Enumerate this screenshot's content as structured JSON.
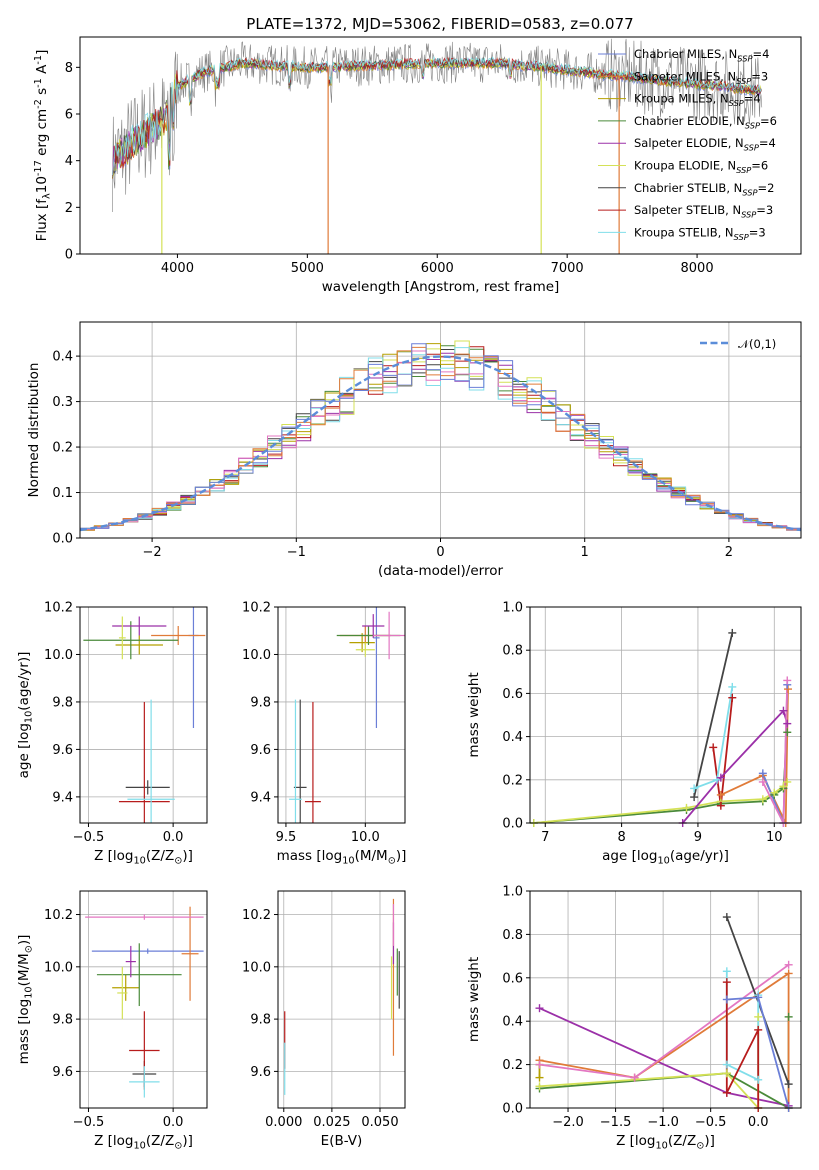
{
  "figure": {
    "title": "PLATE=1372, MJD=53062, FIBERID=0583, z=0.077"
  },
  "models": [
    {
      "name": "Chabrier MILES",
      "n_ssp": 4,
      "color": "#6b7fd7"
    },
    {
      "name": "Salpeter MILES",
      "n_ssp": 3,
      "color": "#e07b39"
    },
    {
      "name": "Kroupa MILES",
      "n_ssp": 4,
      "color": "#b5a000"
    },
    {
      "name": "Chabrier ELODIE",
      "n_ssp": 6,
      "color": "#4a8a3a"
    },
    {
      "name": "Salpeter ELODIE",
      "n_ssp": 4,
      "color": "#9b30a8"
    },
    {
      "name": "Kroupa ELODIE",
      "n_ssp": 6,
      "color": "#d4e157"
    },
    {
      "name": "Chabrier STELIB",
      "n_ssp": 2,
      "color": "#444444"
    },
    {
      "name": "Salpeter STELIB",
      "n_ssp": 3,
      "color": "#b71c1c"
    },
    {
      "name": "Kroupa STELIB",
      "n_ssp": 3,
      "color": "#80deea"
    }
  ],
  "chart_data": [
    {
      "id": "spectrum",
      "type": "line",
      "title": "PLATE=1372, MJD=53062, FIBERID=0583, z=0.077",
      "xlabel": "wavelength [Angstrom, rest frame]",
      "ylabel": "Flux [f$_\\lambda$10$^{-17}$ erg cm$^{-2}$ s$^{-1}$ A$^{-1}$]",
      "xlim": [
        3250,
        8800
      ],
      "ylim": [
        0,
        9.3
      ],
      "xticks": [
        4000,
        5000,
        6000,
        7000,
        8000
      ],
      "yticks": [
        0,
        2,
        4,
        6,
        8
      ],
      "grid": false,
      "legend_loc": "upper right",
      "legend": [
        "Chabrier MILES, N$_{SSP}$=4",
        "Salpeter MILES, N$_{SSP}$=3",
        "Kroupa MILES, N$_{SSP}$=4",
        "Chabrier ELODIE, N$_{SSP}$=6",
        "Salpeter ELODIE, N$_{SSP}$=4",
        "Kroupa ELODIE, N$_{SSP}$=6",
        "Chabrier STELIB, N$_{SSP}$=2",
        "Salpeter STELIB, N$_{SSP}$=3",
        "Kroupa STELIB, N$_{SSP}$=3"
      ],
      "continuum_x": [
        3500,
        3700,
        3900,
        4000,
        4200,
        4500,
        5000,
        5500,
        6000,
        6500,
        7000,
        7300,
        7500,
        7800,
        8200,
        8500
      ],
      "continuum_y": [
        4.0,
        5.0,
        5.8,
        7.2,
        7.8,
        8.2,
        8.0,
        8.1,
        8.2,
        8.2,
        7.9,
        7.7,
        7.6,
        7.4,
        7.2,
        7.0
      ]
    },
    {
      "id": "residuals",
      "type": "histogram",
      "xlabel": "(data-model)/error",
      "ylabel": "Normed distribution",
      "xlim": [
        -2.5,
        2.5
      ],
      "ylim": [
        0,
        0.475
      ],
      "xticks": [
        -2,
        -1,
        0,
        1,
        2
      ],
      "xticklabels": [
        "−2",
        "−1",
        "0",
        "1",
        "2"
      ],
      "yticks": [
        0.0,
        0.1,
        0.2,
        0.3,
        0.4
      ],
      "yticklabels": [
        "0.0",
        "0.1",
        "0.2",
        "0.3",
        "0.4"
      ],
      "grid": true,
      "legend_loc": "upper right",
      "legend": [
        "$\\mathcal{N}(0,1)$"
      ],
      "reference": "gaussian N(0,1)",
      "bin_width": 0.1
    },
    {
      "id": "age_vs_Z",
      "type": "errorbar",
      "xlabel": "Z [log$_{10}$(Z/Z$_\\odot$)]",
      "ylabel": "age  [log$_{10}$(age/yr)]",
      "xlim": [
        -0.55,
        0.2
      ],
      "ylim": [
        9.29,
        10.2
      ],
      "xticks": [
        -0.5,
        0.0
      ],
      "xticklabels": [
        "−0.5",
        "0.0"
      ],
      "yticks": [
        9.4,
        9.6,
        9.8,
        10.0,
        10.2
      ],
      "yticklabels": [
        "9.4",
        "9.6",
        "9.8",
        "10.0",
        "10.2"
      ],
      "grid": true,
      "points": [
        {
          "m": 0,
          "x": 0.12,
          "y": 10.08,
          "xe": 0.03,
          "ye": 0.39
        },
        {
          "m": 1,
          "x": 0.03,
          "y": 10.08,
          "xe": 0.16,
          "ye": 0.04
        },
        {
          "m": 2,
          "x": -0.2,
          "y": 10.04,
          "xe": 0.14,
          "ye": 0.04
        },
        {
          "m": 3,
          "x": -0.25,
          "y": 10.06,
          "xe": 0.28,
          "ye": 0.08
        },
        {
          "m": 4,
          "x": -0.2,
          "y": 10.12,
          "xe": 0.16,
          "ye": 0.04
        },
        {
          "m": 5,
          "x": -0.3,
          "y": 10.07,
          "xe": 0.02,
          "ye": 0.09
        },
        {
          "m": 6,
          "x": -0.15,
          "y": 9.44,
          "xe": 0.13,
          "ye": 0.03
        },
        {
          "m": 7,
          "x": -0.17,
          "y": 9.38,
          "xe": 0.15,
          "ye": 0.42
        },
        {
          "m": 8,
          "x": -0.13,
          "y": 9.39,
          "xe": 0.14,
          "ye": 0.42
        }
      ]
    },
    {
      "id": "age_vs_mass",
      "type": "errorbar",
      "xlabel": "mass [log$_{10}$(M/M$_\\odot$)]",
      "xlim": [
        9.45,
        10.25
      ],
      "ylim": [
        9.29,
        10.2
      ],
      "xticks": [
        9.5,
        10.0
      ],
      "xticklabels": [
        "9.5",
        "10.0"
      ],
      "yticks": [
        9.4,
        9.6,
        9.8,
        10.0,
        10.2
      ],
      "yticklabels": [
        "9.4",
        "9.6",
        "9.8",
        "10.0",
        "10.2"
      ],
      "grid": true,
      "points": [
        {
          "m": 0,
          "x": 10.07,
          "y": 10.07,
          "xe": 0.02,
          "ye": 0.38
        },
        {
          "m": 1,
          "x": 10.0,
          "y": 10.08,
          "xe": 0.16,
          "ye": 0.04
        },
        {
          "m": 2,
          "x": 9.98,
          "y": 10.05,
          "xe": 0.08,
          "ye": 0.04
        },
        {
          "m": 3,
          "x": 10.02,
          "y": 10.08,
          "xe": 0.2,
          "ye": 0.04
        },
        {
          "m": 4,
          "x": 10.05,
          "y": 10.12,
          "xe": 0.07,
          "ye": 0.05
        },
        {
          "m": 5,
          "x": 10.0,
          "y": 10.02,
          "xe": 0.06,
          "ye": 0.03
        },
        {
          "m": 6,
          "x": 9.59,
          "y": 9.44,
          "xe": 0.04,
          "ye": 0.37
        },
        {
          "m": 7,
          "x": 9.67,
          "y": 9.38,
          "xe": 0.05,
          "ye": 0.42
        },
        {
          "m": 8,
          "x": 9.56,
          "y": 9.39,
          "xe": 0.04,
          "ye": 0.42
        },
        {
          "m": "pink",
          "x": 10.15,
          "y": 10.08,
          "xe": 0.1,
          "ye": 0.1
        }
      ]
    },
    {
      "id": "massweight_vs_age",
      "type": "line",
      "xlabel": "age  [log$_{10}$(age/yr)]",
      "ylabel": "mass weight",
      "xlim": [
        6.8,
        10.35
      ],
      "ylim": [
        0,
        1.0
      ],
      "xticks": [
        7,
        8,
        9,
        10
      ],
      "xticklabels": [
        "7",
        "8",
        "9",
        "10"
      ],
      "yticks": [
        0.0,
        0.2,
        0.4,
        0.6,
        0.8,
        1.0
      ],
      "yticklabels": [
        "0.0",
        "0.2",
        "0.4",
        "0.6",
        "0.8",
        "1.0"
      ],
      "grid": true,
      "series": [
        {
          "m": 3,
          "x": [
            6.85,
            8.85,
            9.3,
            9.85,
            10.0,
            10.12,
            10.17
          ],
          "y": [
            0.0,
            0.06,
            0.09,
            0.1,
            0.13,
            0.16,
            0.42
          ]
        },
        {
          "m": 5,
          "x": [
            6.85,
            8.85,
            9.3,
            9.85,
            10.0,
            10.12,
            10.17
          ],
          "y": [
            0.0,
            0.07,
            0.1,
            0.11,
            0.14,
            0.17,
            0.19
          ]
        },
        {
          "m": 6,
          "x": [
            8.95,
            9.45
          ],
          "y": [
            0.12,
            0.88
          ]
        },
        {
          "m": 7,
          "x": [
            9.2,
            9.3,
            9.45
          ],
          "y": [
            0.35,
            0.08,
            0.58
          ]
        },
        {
          "m": 8,
          "x": [
            8.95,
            9.25,
            9.45
          ],
          "y": [
            0.16,
            0.2,
            0.63
          ]
        },
        {
          "m": 4,
          "x": [
            8.8,
            9.3,
            10.12,
            10.17
          ],
          "y": [
            0.0,
            0.21,
            0.52,
            0.46
          ]
        },
        {
          "m": 1,
          "x": [
            9.3,
            9.85,
            10.15,
            10.18
          ],
          "y": [
            0.13,
            0.22,
            0.0,
            0.62
          ]
        },
        {
          "m": 0,
          "x": [
            9.85,
            10.12,
            10.17
          ],
          "y": [
            0.23,
            0.0,
            0.64
          ]
        },
        {
          "m": "pink",
          "x": [
            9.85,
            10.12,
            10.17
          ],
          "y": [
            0.19,
            0.0,
            0.66
          ]
        }
      ]
    },
    {
      "id": "mass_vs_Z",
      "type": "errorbar",
      "xlabel": "Z [log$_{10}$(Z/Z$_\\odot$)]",
      "ylabel": "mass [log$_{10}$(M/M$_\\odot$)]",
      "xlim": [
        -0.55,
        0.2
      ],
      "ylim": [
        9.46,
        10.29
      ],
      "xticks": [
        -0.5,
        0.0
      ],
      "xticklabels": [
        "−0.5",
        "0.0"
      ],
      "yticks": [
        9.6,
        9.8,
        10.0,
        10.2
      ],
      "yticklabels": [
        "9.6",
        "9.8",
        "10.0",
        "10.2"
      ],
      "grid": true,
      "points": [
        {
          "m": 0,
          "x": -0.15,
          "y": 10.06,
          "xe": 0.33,
          "ye": 0.01
        },
        {
          "m": 1,
          "x": 0.1,
          "y": 10.05,
          "xe": 0.05,
          "ye": 0.18
        },
        {
          "m": 2,
          "x": -0.28,
          "y": 9.92,
          "xe": 0.08,
          "ye": 0.05
        },
        {
          "m": 3,
          "x": -0.2,
          "y": 9.97,
          "xe": 0.25,
          "ye": 0.12
        },
        {
          "m": 4,
          "x": -0.25,
          "y": 10.02,
          "xe": 0.03,
          "ye": 0.06
        },
        {
          "m": 5,
          "x": -0.3,
          "y": 9.9,
          "xe": 0.03,
          "ye": 0.1
        },
        {
          "m": 6,
          "x": -0.17,
          "y": 9.59,
          "xe": 0.07,
          "ye": 0.05
        },
        {
          "m": 7,
          "x": -0.17,
          "y": 9.68,
          "xe": 0.09,
          "ye": 0.15
        },
        {
          "m": 8,
          "x": -0.17,
          "y": 9.56,
          "xe": 0.09,
          "ye": 0.06
        },
        {
          "m": "pink",
          "x": -0.17,
          "y": 10.19,
          "xe": 0.35,
          "ye": 0.01
        }
      ]
    },
    {
      "id": "mass_vs_EBV",
      "type": "errorbar",
      "xlabel": "E(B-V)",
      "xlim": [
        -0.003,
        0.063
      ],
      "ylim": [
        9.46,
        10.29
      ],
      "xticks": [
        0.0,
        0.025,
        0.05
      ],
      "xticklabels": [
        "0.000",
        "0.025",
        "0.050"
      ],
      "yticks": [
        9.6,
        9.8,
        10.0,
        10.2
      ],
      "yticklabels": [
        "9.6",
        "9.8",
        "10.0",
        "10.2"
      ],
      "grid": true,
      "points": [
        {
          "m": 7,
          "x": 0.0005,
          "y": 9.72,
          "xe": 0,
          "ye": 0.11
        },
        {
          "m": 8,
          "x": 0.0005,
          "y": 9.61,
          "xe": 0,
          "ye": 0.1
        },
        {
          "m": 1,
          "x": 0.057,
          "y": 9.96,
          "xe": 0,
          "ye": 0.3
        },
        {
          "m": 4,
          "x": 0.057,
          "y": 10.09,
          "xe": 0,
          "ye": 0.08
        },
        {
          "m": "pink",
          "x": 0.057,
          "y": 10.16,
          "xe": 0,
          "ye": 0.08
        },
        {
          "m": 5,
          "x": 0.056,
          "y": 9.92,
          "xe": 0,
          "ye": 0.12
        },
        {
          "m": 6,
          "x": 0.06,
          "y": 9.95,
          "xe": 0,
          "ye": 0.11
        },
        {
          "m": 3,
          "x": 0.059,
          "y": 9.98,
          "xe": 0,
          "ye": 0.09
        }
      ]
    },
    {
      "id": "massweight_vs_Z",
      "type": "line",
      "xlabel": "Z [log$_{10}$(Z/Z$_\\odot$)]",
      "ylabel": "mass weight",
      "xlim": [
        -2.4,
        0.45
      ],
      "ylim": [
        0,
        1.0
      ],
      "xticks": [
        -2.0,
        -1.5,
        -1.0,
        -0.5,
        0.0
      ],
      "xticklabels": [
        "−2.0",
        "−1.5",
        "−1.0",
        "−0.5",
        "0.0"
      ],
      "yticks": [
        0.0,
        0.2,
        0.4,
        0.6,
        0.8,
        1.0
      ],
      "yticklabels": [
        "0.0",
        "0.2",
        "0.4",
        "0.6",
        "0.8",
        "1.0"
      ],
      "grid": true,
      "series": [
        {
          "m": 4,
          "x": [
            -2.3,
            -0.33,
            0.32
          ],
          "y": [
            0.46,
            0.07,
            0.01
          ]
        },
        {
          "m": 3,
          "x": [
            -2.3,
            -0.33,
            0.32,
            0.32
          ],
          "y": [
            0.09,
            0.16,
            0.0,
            0.42
          ]
        },
        {
          "m": 5,
          "x": [
            -2.3,
            -0.33,
            0.0,
            0.0
          ],
          "y": [
            0.1,
            0.16,
            0.0,
            0.42
          ]
        },
        {
          "m": 2,
          "x": [
            -2.3,
            -2.3
          ],
          "y": [
            0.14,
            0.2
          ]
        },
        {
          "m": 1,
          "x": [
            -2.3,
            -1.3,
            0.32,
            0.32
          ],
          "y": [
            0.22,
            0.14,
            0.62,
            0.0
          ]
        },
        {
          "m": "pink",
          "x": [
            -2.3,
            -1.3,
            0.32
          ],
          "y": [
            0.2,
            0.14,
            0.66
          ]
        },
        {
          "m": 6,
          "x": [
            -0.33,
            0.32
          ],
          "y": [
            0.88,
            0.11
          ]
        },
        {
          "m": 8,
          "x": [
            -0.33,
            -0.33,
            0.0,
            0.0
          ],
          "y": [
            0.63,
            0.2,
            0.13,
            0.52
          ]
        },
        {
          "m": 7,
          "x": [
            -0.33,
            -0.33,
            0.0,
            0.0
          ],
          "y": [
            0.58,
            0.07,
            0.36,
            0.0
          ]
        },
        {
          "m": 0,
          "x": [
            -0.33,
            0.0,
            0.32
          ],
          "y": [
            0.5,
            0.51,
            0.0
          ]
        }
      ]
    }
  ]
}
